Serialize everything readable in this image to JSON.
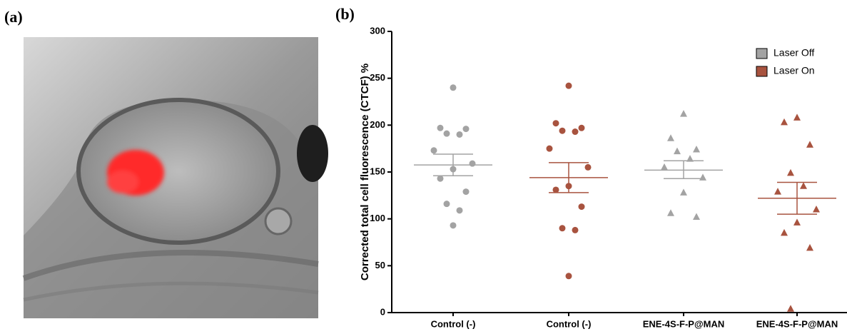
{
  "panel_labels": [
    "(a)",
    "(b)"
  ],
  "chart_data": {
    "type": "dot",
    "y_label": "Corrected total cell fluorescence (CTCF) %",
    "categories": [
      "Control (-)",
      "Control (-)",
      "ENE-4S-F-P@MAN",
      "ENE-4S-F-P@MAN"
    ],
    "markers": [
      "circle",
      "circle",
      "triangle",
      "triangle"
    ],
    "ylim": [
      0,
      300
    ],
    "yticks": [
      0,
      50,
      100,
      150,
      200,
      250,
      300
    ],
    "legend": "top-right",
    "series": [
      {
        "name": "Laser Off",
        "color": "#a3a3a3",
        "values": [
          [
            240,
            197,
            196,
            191,
            190,
            173,
            159,
            153,
            143,
            129,
            116,
            109,
            93
          ],
          null,
          [
            212,
            186,
            174,
            172,
            164,
            155,
            144,
            128,
            106,
            102
          ],
          null
        ],
        "mean": [
          157.5,
          null,
          152,
          null
        ],
        "upper": [
          169,
          null,
          162,
          null
        ],
        "lower": [
          146,
          null,
          143,
          null
        ]
      },
      {
        "name": "Laser On",
        "color": "#a8533f",
        "values": [
          null,
          [
            242,
            202,
            197,
            194,
            193,
            175,
            155,
            135,
            131,
            113,
            90,
            88,
            39
          ],
          null,
          [
            208,
            203,
            179,
            149,
            135,
            129,
            110,
            96,
            85,
            69,
            4
          ]
        ],
        "mean": [
          null,
          144,
          null,
          122
        ],
        "upper": [
          null,
          160,
          null,
          139
        ],
        "lower": [
          null,
          128,
          null,
          105
        ]
      }
    ]
  }
}
